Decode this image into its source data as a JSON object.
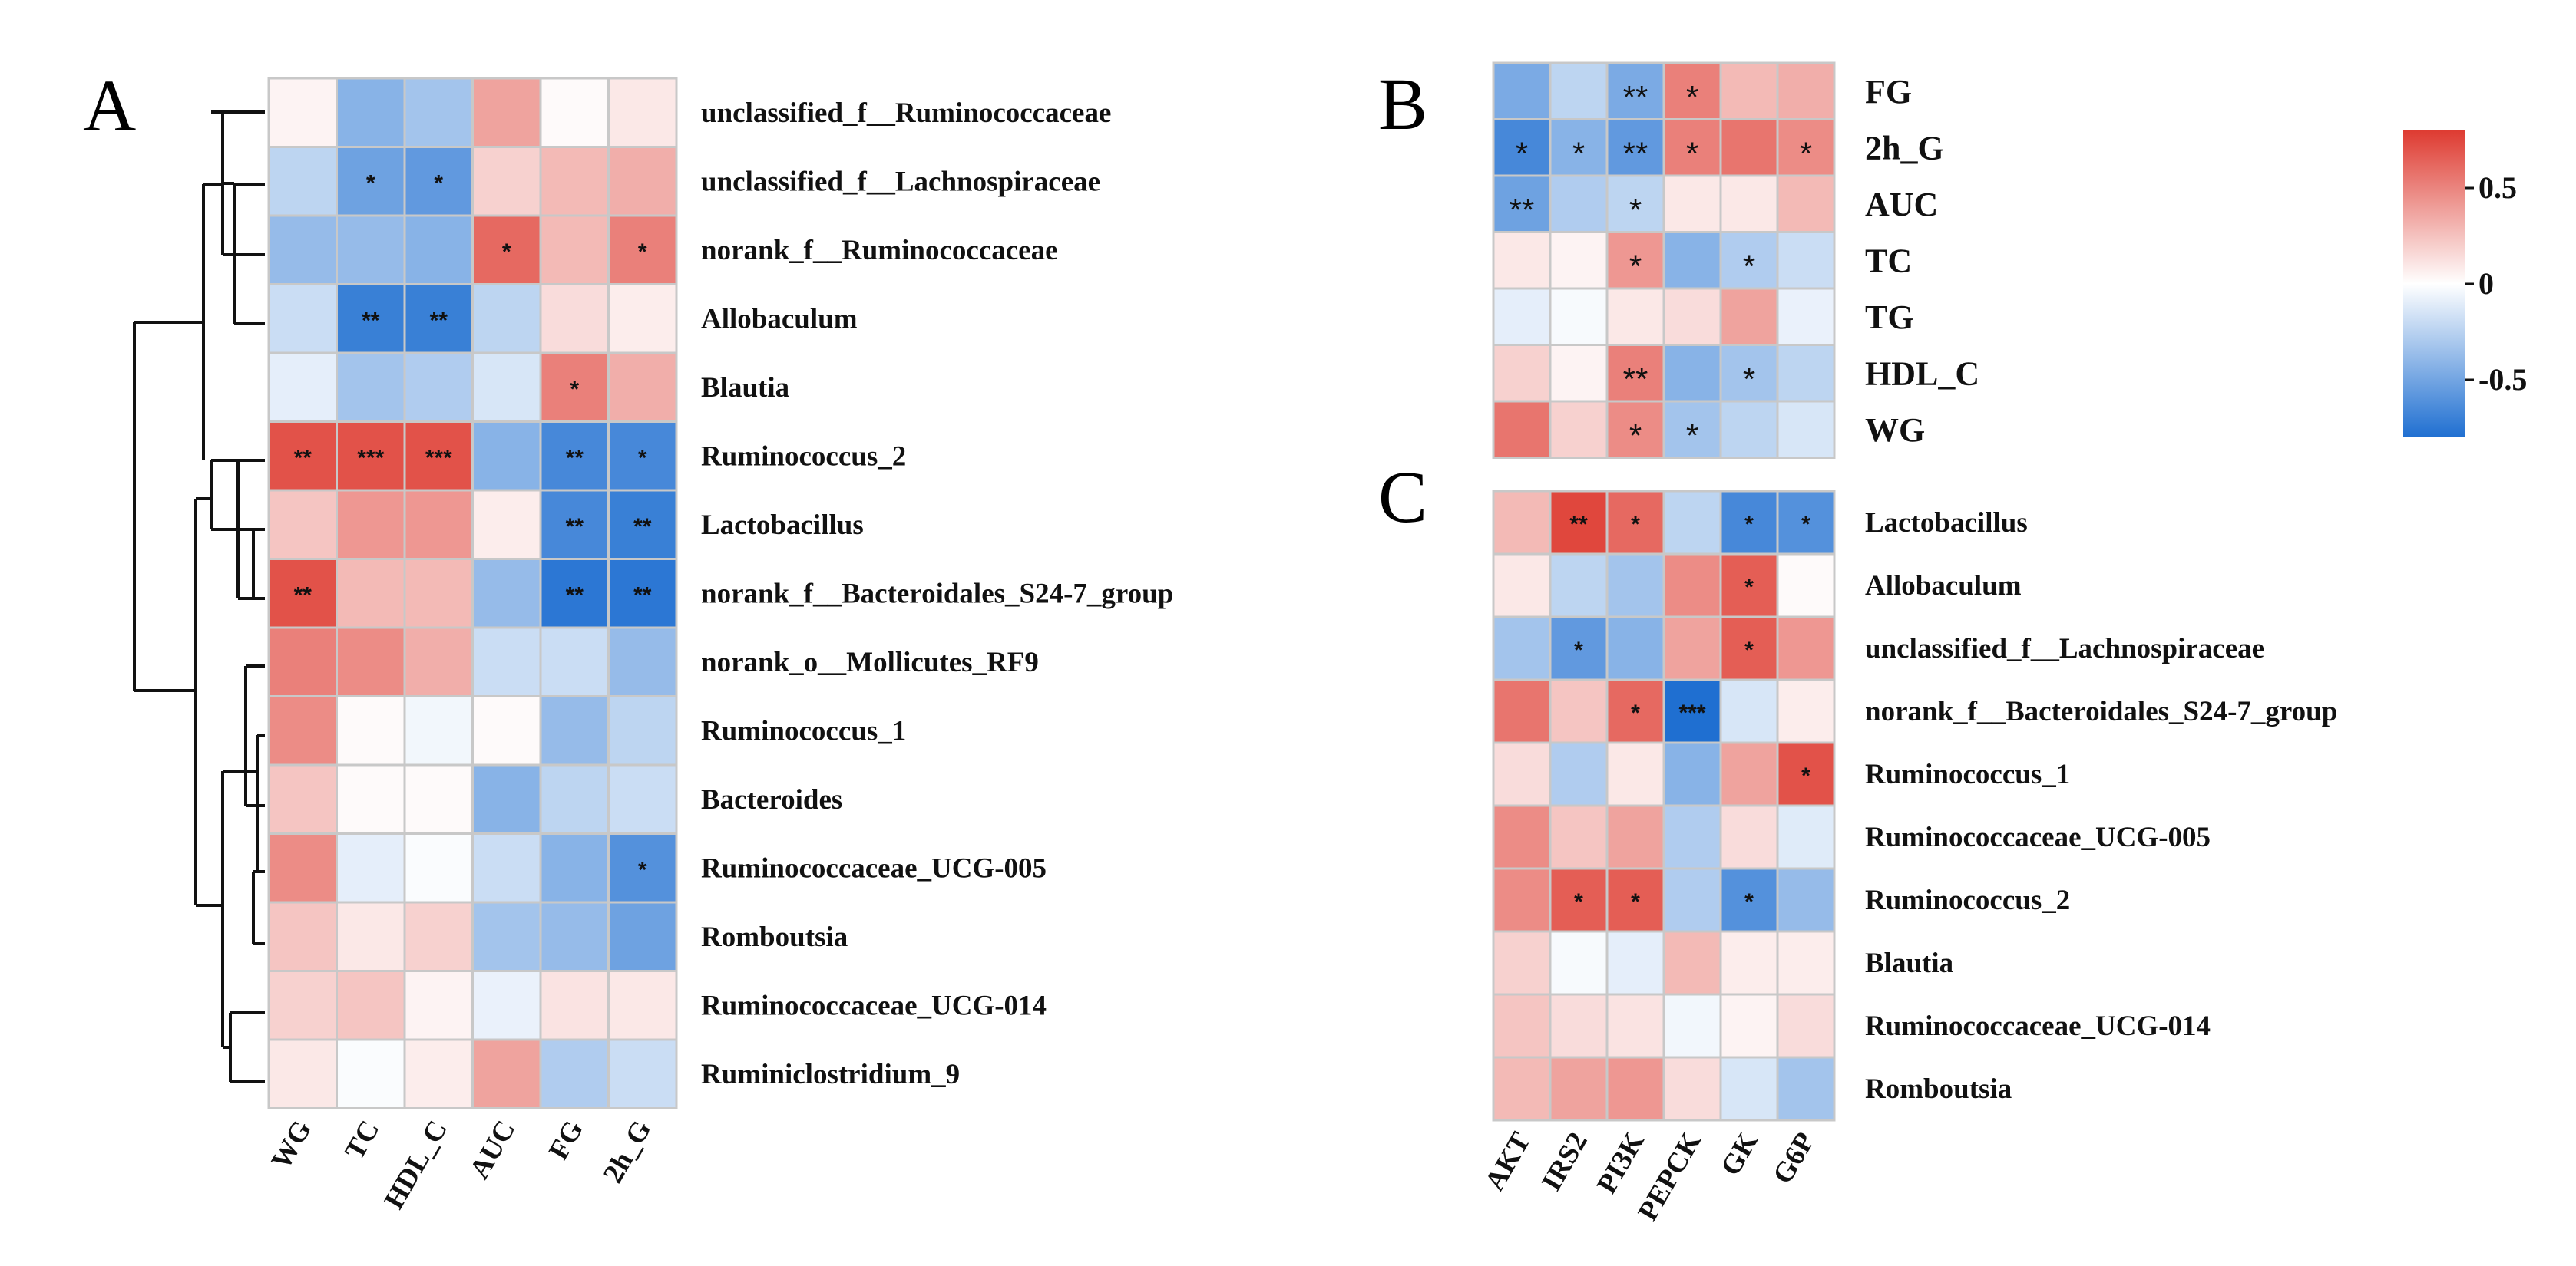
{
  "colors": {
    "low": "#1f6fd1",
    "mid": "#ffffff",
    "high": "#de3b31",
    "grid": "#c8c8c8"
  },
  "chart_data": [
    {
      "type": "heatmap",
      "panel_label": "A",
      "title": "",
      "columns": [
        "WG",
        "TC",
        "HDL_C",
        "AUC",
        "FG",
        "2h_G"
      ],
      "rows": [
        "unclassified_f__Ruminococcaceae",
        "unclassified_f__Lachnospiraceae",
        "norank_f__Ruminococcaceae",
        "Allobaculum",
        "Blautia",
        "Ruminococcus_2",
        "Lactobacillus",
        "norank_f__Bacteroidales_S24-7_group",
        "norank_o__Mollicutes_RF9",
        "Ruminococcus_1",
        "Bacteroides",
        "Ruminococcaceae_UCG-005",
        "Romboutsia",
        "Ruminococcaceae_UCG-014",
        "Ruminiclostridium_9"
      ],
      "values": [
        [
          0.05,
          -0.45,
          -0.35,
          0.4,
          0.02,
          0.1
        ],
        [
          -0.25,
          -0.55,
          -0.6,
          0.2,
          0.3,
          0.35
        ],
        [
          -0.4,
          -0.4,
          -0.45,
          0.65,
          0.3,
          0.55
        ],
        [
          -0.2,
          -0.75,
          -0.75,
          -0.25,
          0.15,
          0.08
        ],
        [
          -0.1,
          -0.35,
          -0.3,
          -0.15,
          0.55,
          0.35
        ],
        [
          0.75,
          0.75,
          0.75,
          -0.45,
          -0.7,
          -0.7
        ],
        [
          0.25,
          0.45,
          0.45,
          0.08,
          -0.7,
          -0.75
        ],
        [
          0.75,
          0.3,
          0.3,
          -0.4,
          -0.8,
          -0.8
        ],
        [
          0.55,
          0.5,
          0.35,
          -0.2,
          -0.2,
          -0.4
        ],
        [
          0.5,
          0.02,
          -0.05,
          0.02,
          -0.4,
          -0.25
        ],
        [
          0.25,
          0.02,
          0.02,
          -0.45,
          -0.25,
          -0.2
        ],
        [
          0.5,
          -0.1,
          -0.02,
          -0.2,
          -0.45,
          -0.65
        ],
        [
          0.25,
          0.1,
          0.2,
          -0.35,
          -0.4,
          -0.55
        ],
        [
          0.2,
          0.25,
          0.05,
          -0.08,
          0.12,
          0.1
        ],
        [
          0.1,
          -0.02,
          0.08,
          0.4,
          -0.3,
          -0.2
        ]
      ],
      "significance": [
        [
          "",
          "",
          "",
          "",
          "",
          ""
        ],
        [
          "",
          "*",
          "*",
          "",
          "",
          ""
        ],
        [
          "",
          "",
          "",
          "*",
          "",
          "*"
        ],
        [
          "",
          "**",
          "**",
          "",
          "",
          ""
        ],
        [
          "",
          "",
          "",
          "",
          "*",
          ""
        ],
        [
          "**",
          "***",
          "***",
          "",
          "**",
          "*"
        ],
        [
          "",
          "",
          "",
          "",
          "**",
          "**"
        ],
        [
          "**",
          "",
          "",
          "",
          "**",
          "**"
        ],
        [
          "",
          "",
          "",
          "",
          "",
          ""
        ],
        [
          "",
          "",
          "",
          "",
          "",
          ""
        ],
        [
          "",
          "",
          "",
          "",
          "",
          ""
        ],
        [
          "",
          "",
          "",
          "",
          "",
          "*"
        ],
        [
          "",
          "",
          "",
          "",
          "",
          ""
        ],
        [
          "",
          "",
          "",
          "",
          "",
          ""
        ],
        [
          "",
          "",
          "",
          "",
          "",
          ""
        ]
      ]
    },
    {
      "type": "heatmap",
      "panel_label": "B",
      "title": "",
      "columns": [
        "AKT",
        "IRS2",
        "PI3K",
        "PEPCK",
        "GK",
        "G6P"
      ],
      "rows": [
        "FG",
        "2h_G",
        "AUC",
        "TC",
        "TG",
        "HDL_C",
        "WG"
      ],
      "values": [
        [
          -0.5,
          -0.25,
          -0.5,
          0.55,
          0.3,
          0.35
        ],
        [
          -0.7,
          -0.45,
          -0.6,
          0.55,
          0.6,
          0.5
        ],
        [
          -0.55,
          -0.3,
          -0.25,
          0.1,
          0.1,
          0.3
        ],
        [
          0.1,
          0.05,
          0.45,
          -0.45,
          -0.3,
          -0.2
        ],
        [
          -0.1,
          -0.03,
          0.1,
          0.15,
          0.4,
          -0.08
        ],
        [
          0.2,
          0.05,
          0.55,
          -0.45,
          -0.35,
          -0.25
        ],
        [
          0.6,
          0.2,
          0.5,
          -0.35,
          -0.25,
          -0.15
        ]
      ],
      "significance": [
        [
          "",
          "",
          "**",
          "*",
          "",
          ""
        ],
        [
          "*",
          "*",
          "**",
          "*",
          "",
          "*"
        ],
        [
          "**",
          "",
          "*",
          "",
          "",
          ""
        ],
        [
          "",
          "",
          "*",
          "",
          "*",
          ""
        ],
        [
          "",
          "",
          "",
          "",
          "",
          ""
        ],
        [
          "",
          "",
          "**",
          "",
          "*",
          ""
        ],
        [
          "",
          "",
          "*",
          "*",
          "",
          ""
        ]
      ]
    },
    {
      "type": "heatmap",
      "panel_label": "C",
      "title": "",
      "columns": [
        "AKT",
        "IRS2",
        "PI3K",
        "PEPCK",
        "GK",
        "G6P"
      ],
      "rows": [
        "Lactobacillus",
        "Allobaculum",
        "unclassified_f__Lachnospiraceae",
        "norank_f__Bacteroidales_S24-7_group",
        "Ruminococcus_1",
        "Ruminococcaceae_UCG-005",
        "Ruminococcus_2",
        "Blautia",
        "Ruminococcaceae_UCG-014",
        "Romboutsia"
      ],
      "values": [
        [
          0.3,
          0.8,
          0.65,
          -0.25,
          -0.7,
          -0.65
        ],
        [
          0.1,
          -0.25,
          -0.35,
          0.5,
          0.7,
          0.02
        ],
        [
          -0.35,
          -0.6,
          -0.45,
          0.4,
          0.7,
          0.45
        ],
        [
          0.6,
          0.25,
          0.65,
          -0.85,
          -0.15,
          0.08
        ],
        [
          0.15,
          -0.3,
          0.1,
          -0.45,
          0.4,
          0.75
        ],
        [
          0.5,
          0.25,
          0.4,
          -0.3,
          0.15,
          -0.12
        ],
        [
          0.5,
          0.7,
          0.7,
          -0.3,
          -0.65,
          -0.4
        ],
        [
          0.2,
          -0.03,
          -0.1,
          0.3,
          0.08,
          0.08
        ],
        [
          0.25,
          0.15,
          0.12,
          -0.05,
          0.05,
          0.15
        ],
        [
          0.3,
          0.4,
          0.45,
          0.15,
          -0.15,
          -0.35
        ]
      ],
      "significance": [
        [
          "",
          "**",
          "*",
          "",
          "*",
          "*"
        ],
        [
          "",
          "",
          "",
          "",
          "*",
          ""
        ],
        [
          "",
          "*",
          "",
          "",
          "*",
          ""
        ],
        [
          "",
          "",
          "*",
          "***",
          "",
          ""
        ],
        [
          "",
          "",
          "",
          "",
          "",
          "*"
        ],
        [
          "",
          "",
          "",
          "",
          "",
          ""
        ],
        [
          "",
          "*",
          "*",
          "",
          "*",
          ""
        ],
        [
          "",
          "",
          "",
          "",
          "",
          ""
        ],
        [
          "",
          "",
          "",
          "",
          "",
          ""
        ],
        [
          "",
          "",
          "",
          "",
          "",
          ""
        ]
      ]
    }
  ],
  "colorbar": {
    "ticks": [
      0.5,
      0,
      -0.5
    ],
    "tick_labels": [
      "0.5",
      "0",
      "-0.5"
    ],
    "range": [
      -0.8,
      0.8
    ]
  }
}
